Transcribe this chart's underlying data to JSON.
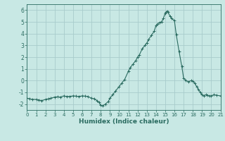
{
  "xlabel": "Humidex (Indice chaleur)",
  "xlim": [
    0,
    21
  ],
  "ylim": [
    -2.5,
    6.5
  ],
  "yticks": [
    -2,
    -1,
    0,
    1,
    2,
    3,
    4,
    5,
    6
  ],
  "xticks": [
    0,
    1,
    2,
    3,
    4,
    5,
    6,
    7,
    8,
    9,
    10,
    11,
    12,
    13,
    14,
    15,
    16,
    17,
    18,
    19,
    20,
    21
  ],
  "bg_color": "#c8e8e4",
  "grid_color": "#a8cccc",
  "line_color": "#2a6b60",
  "x": [
    0,
    0.3,
    0.6,
    1.0,
    1.3,
    1.6,
    2.0,
    2.3,
    2.6,
    3.0,
    3.3,
    3.6,
    4.0,
    4.3,
    4.6,
    5.0,
    5.3,
    5.6,
    6.0,
    6.3,
    6.6,
    7.0,
    7.3,
    7.6,
    7.8,
    8.0,
    8.2,
    8.5,
    8.8,
    9.0,
    9.3,
    9.6,
    10.0,
    10.3,
    10.6,
    11.0,
    11.2,
    11.5,
    11.8,
    12.0,
    12.2,
    12.5,
    12.8,
    13.0,
    13.2,
    13.5,
    13.8,
    14.0,
    14.2,
    14.4,
    14.6,
    14.8,
    15.0,
    15.1,
    15.2,
    15.3,
    15.5,
    15.7,
    16.0,
    16.2,
    16.5,
    16.8,
    17.0,
    17.2,
    17.5,
    17.8,
    18.0,
    18.2,
    18.4,
    18.6,
    18.8,
    19.0,
    19.2,
    19.4,
    19.6,
    19.8,
    20.0,
    20.3,
    20.6,
    21.0
  ],
  "y": [
    -1.5,
    -1.55,
    -1.6,
    -1.6,
    -1.65,
    -1.7,
    -1.6,
    -1.55,
    -1.5,
    -1.4,
    -1.38,
    -1.4,
    -1.3,
    -1.35,
    -1.35,
    -1.3,
    -1.32,
    -1.35,
    -1.3,
    -1.32,
    -1.35,
    -1.5,
    -1.55,
    -1.7,
    -1.85,
    -2.1,
    -2.15,
    -2.0,
    -1.8,
    -1.5,
    -1.2,
    -0.9,
    -0.5,
    -0.2,
    0.1,
    0.8,
    1.1,
    1.4,
    1.7,
    2.0,
    2.2,
    2.7,
    3.0,
    3.2,
    3.5,
    3.85,
    4.2,
    4.7,
    4.85,
    4.95,
    5.0,
    5.3,
    5.75,
    5.85,
    5.9,
    5.85,
    5.5,
    5.3,
    5.1,
    3.9,
    2.5,
    1.2,
    0.2,
    0.05,
    -0.1,
    0.0,
    -0.05,
    -0.2,
    -0.5,
    -0.75,
    -1.0,
    -1.2,
    -1.3,
    -1.2,
    -1.25,
    -1.3,
    -1.3,
    -1.2,
    -1.25,
    -1.3
  ]
}
